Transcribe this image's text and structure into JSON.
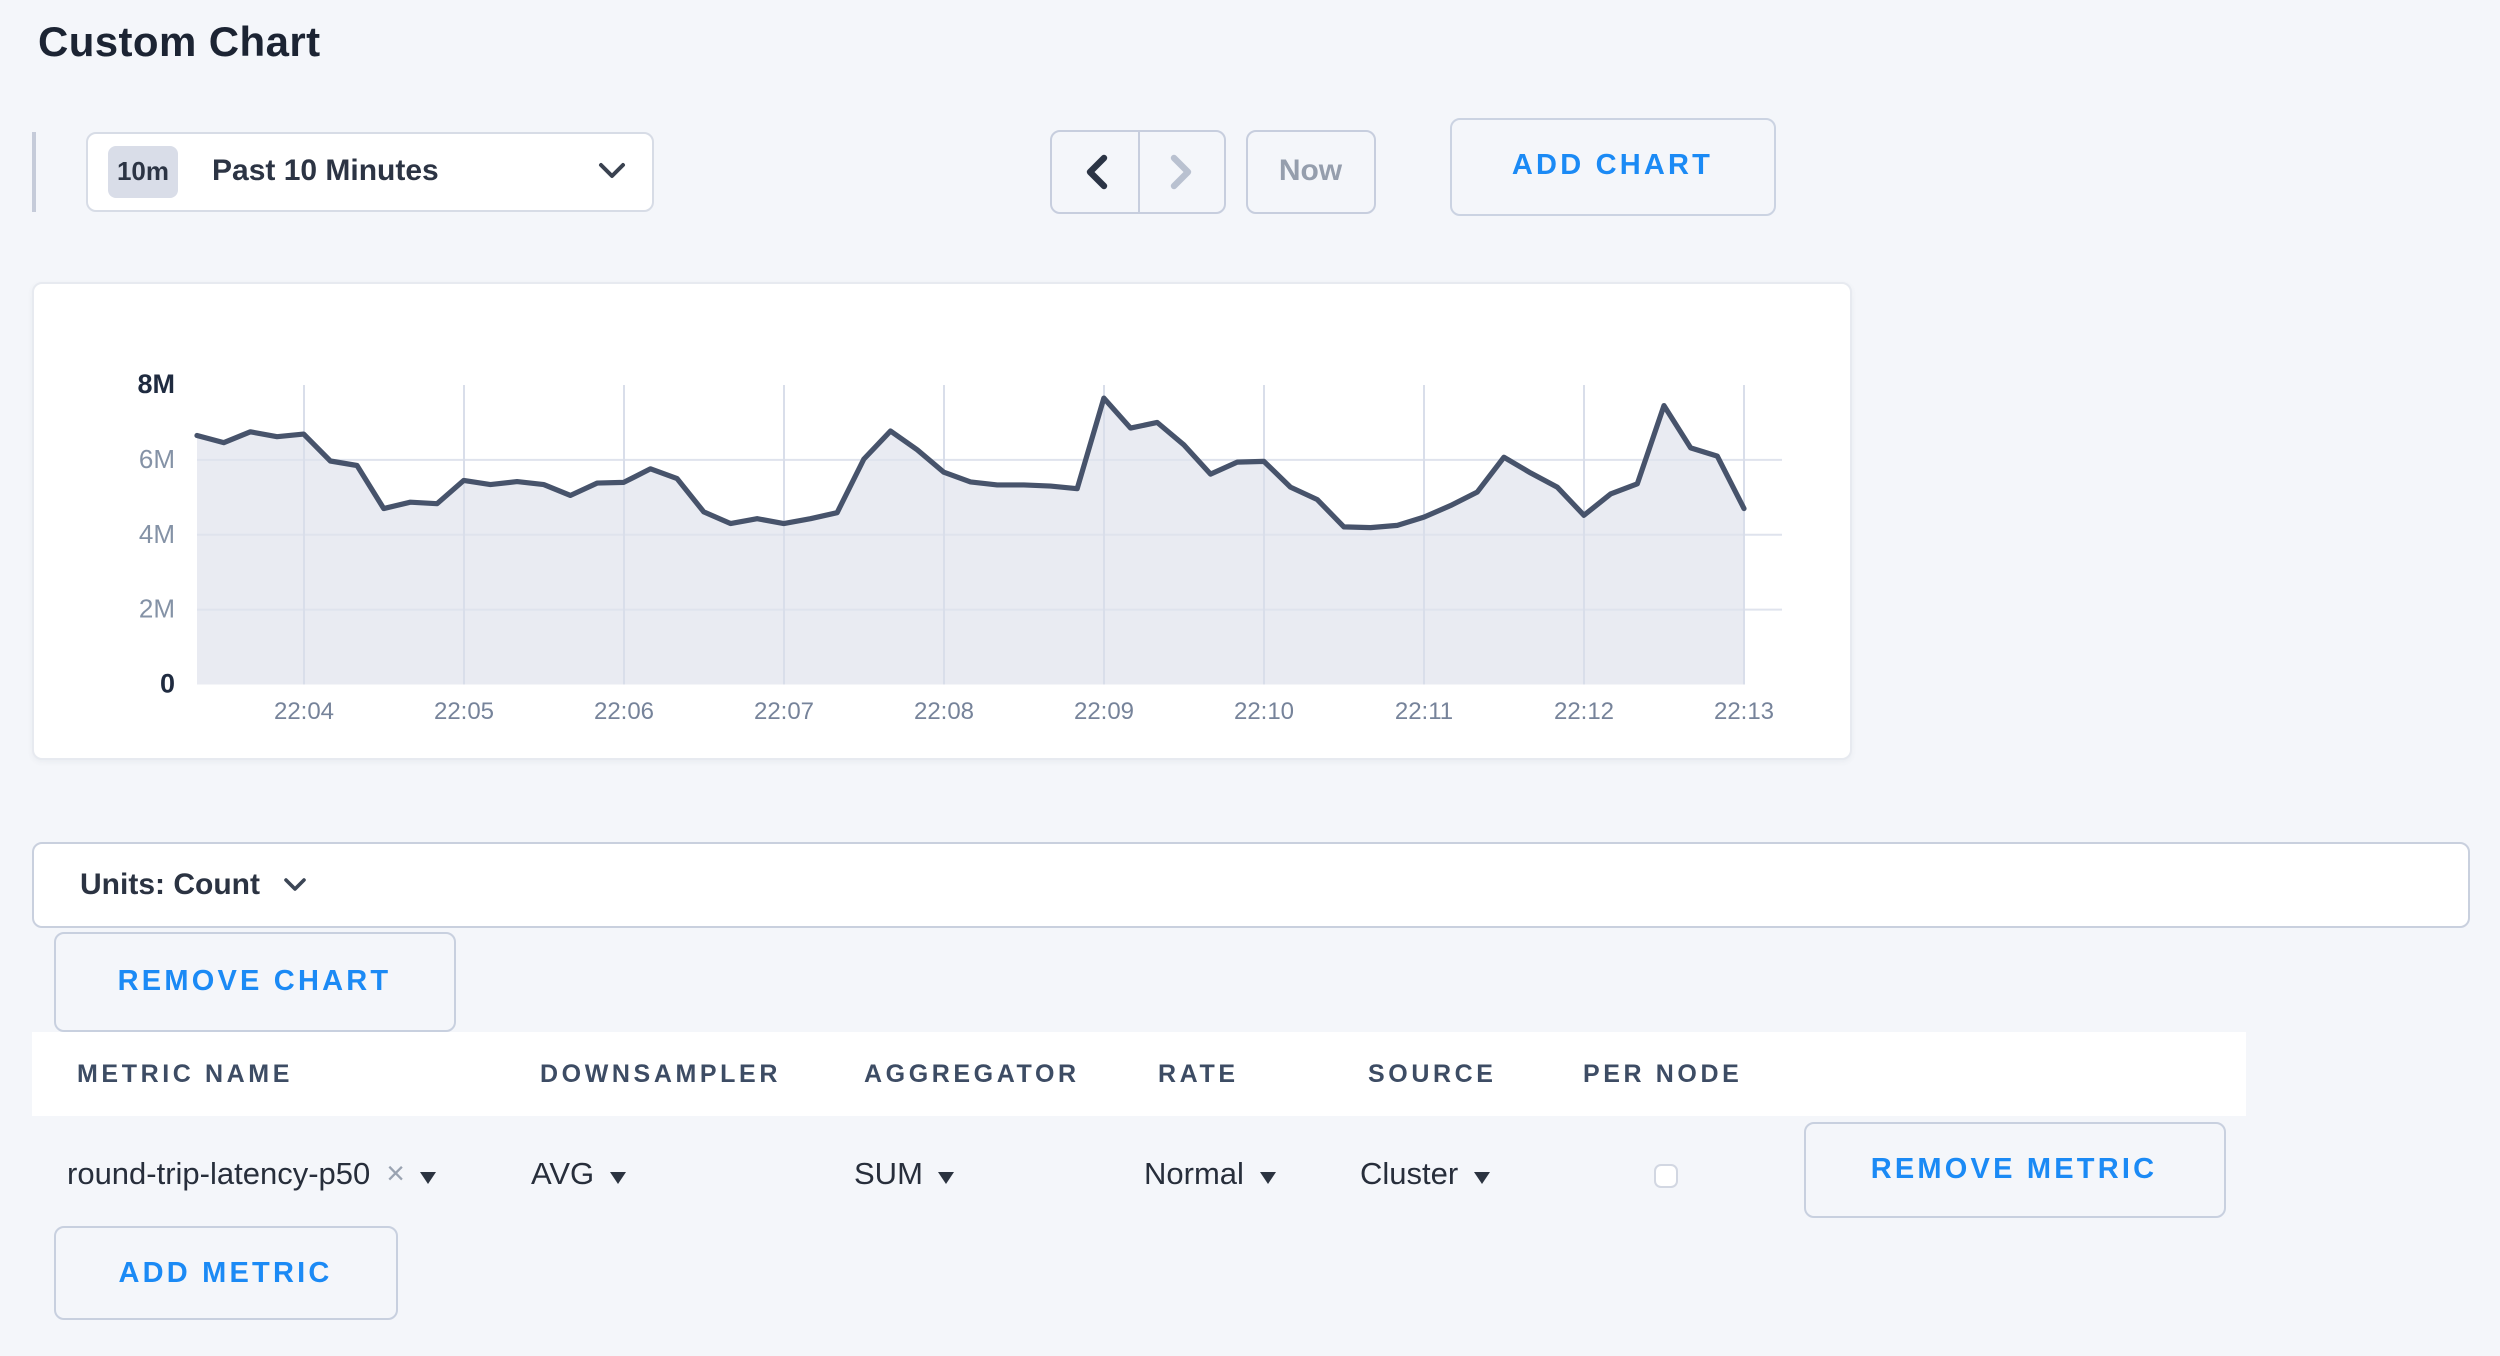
{
  "page": {
    "title": "Custom Chart",
    "background": "#f4f6fa",
    "accent_blue": "#1b8af5"
  },
  "toolbar": {
    "time_range": {
      "badge": "10m",
      "label": "Past 10 Minutes"
    },
    "prev_icon": "chevron-left",
    "next_icon": "chevron-right",
    "now_label": "Now",
    "add_chart_label": "ADD CHART"
  },
  "chart_card": {
    "remove_chart_label": "REMOVE CHART"
  },
  "units_bar": {
    "label": "Units: Count"
  },
  "chart_data": {
    "type": "area",
    "title": "",
    "ylabel": "count",
    "ylim": [
      0,
      8000000
    ],
    "y_tick_labels": [
      "8M",
      "6M",
      "4M",
      "2M",
      "0"
    ],
    "y_tick_values": [
      8,
      6,
      4,
      2,
      0
    ],
    "x_ticks": [
      "22:04",
      "22:05",
      "22:06",
      "22:07",
      "22:08",
      "22:09",
      "22:10",
      "22:11",
      "22:12",
      "22:13"
    ],
    "x_start": "22:03:20",
    "x_interval_seconds": 10,
    "grid": true,
    "legend": "none",
    "line_color": "#47536b",
    "fill_color": "#e9ebf2",
    "values_millions": [
      6.65,
      6.46,
      6.75,
      6.62,
      6.69,
      5.97,
      5.85,
      4.7,
      4.87,
      4.83,
      5.45,
      5.34,
      5.42,
      5.34,
      5.05,
      5.38,
      5.4,
      5.76,
      5.5,
      4.61,
      4.3,
      4.43,
      4.3,
      4.43,
      4.59,
      6.02,
      6.77,
      6.27,
      5.67,
      5.41,
      5.33,
      5.33,
      5.3,
      5.23,
      7.65,
      6.85,
      7.0,
      6.4,
      5.62,
      5.94,
      5.96,
      5.27,
      4.94,
      4.21,
      4.19,
      4.25,
      4.47,
      4.78,
      5.14,
      6.07,
      5.65,
      5.27,
      4.52,
      5.09,
      5.36,
      7.45,
      6.32,
      6.1,
      4.7
    ]
  },
  "metrics_table": {
    "columns": [
      "METRIC NAME",
      "DOWNSAMPLER",
      "AGGREGATOR",
      "RATE",
      "SOURCE",
      "PER NODE"
    ],
    "rows": [
      {
        "metric_name": "round-trip-latency-p50",
        "downsampler": "AVG",
        "aggregator": "SUM",
        "rate": "Normal",
        "source": "Cluster",
        "per_node_checked": false,
        "remove_label": "REMOVE METRIC"
      }
    ],
    "add_metric_label": "ADD METRIC"
  }
}
